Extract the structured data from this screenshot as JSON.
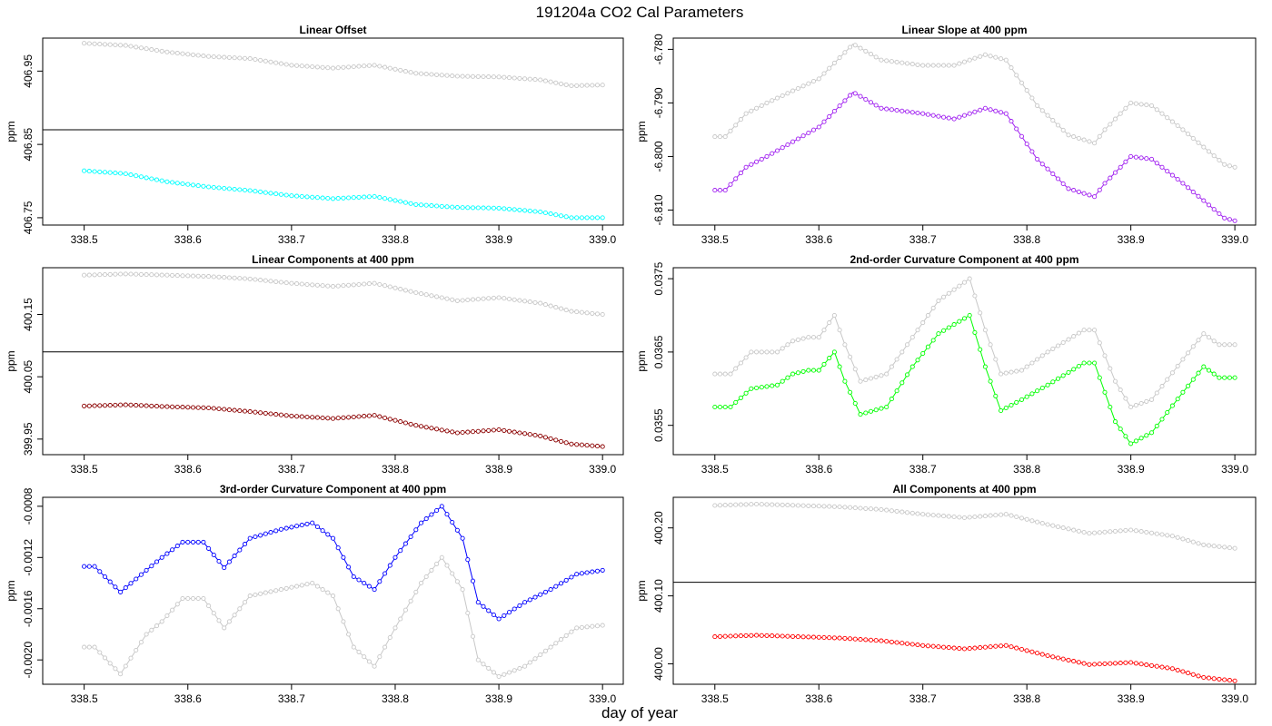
{
  "figure": {
    "title": "191204a   CO2 Cal Parameters",
    "xlabel": "day of year"
  },
  "colors": {
    "gray": "#c8c8c8",
    "cyan": "#00ffff",
    "purple": "#a020f0",
    "maroon": "#8b0000",
    "green": "#00ff00",
    "blue": "#0000ff",
    "red": "#ff0000",
    "ref_line": "#000000"
  },
  "chart_data": [
    {
      "type": "scatter",
      "title": "Linear Offset",
      "ylabel": "ppm",
      "xlim": [
        338.46,
        339.02
      ],
      "ylim": [
        406.74,
        406.995
      ],
      "xticks": [
        338.5,
        338.6,
        338.7,
        338.8,
        338.9,
        339.0
      ],
      "xtick_labels": [
        "338.5",
        "338.6",
        "338.7",
        "338.8",
        "338.9",
        "339.0"
      ],
      "yticks": [
        406.75,
        406.85,
        406.95
      ],
      "ytick_labels": [
        "406.75",
        "406.85",
        "406.95"
      ],
      "hline": 406.87,
      "series": [
        {
          "color": "gray",
          "x": [
            338.5,
            338.54,
            338.58,
            338.62,
            338.66,
            338.7,
            338.74,
            338.78,
            338.82,
            338.86,
            338.9,
            338.94,
            338.97,
            339.0
          ],
          "y": [
            406.988,
            406.985,
            406.976,
            406.97,
            406.967,
            406.958,
            406.954,
            406.958,
            406.947,
            406.943,
            406.942,
            406.938,
            406.93,
            406.931
          ]
        },
        {
          "color": "cyan",
          "x": [
            338.5,
            338.54,
            338.58,
            338.62,
            338.66,
            338.7,
            338.74,
            338.78,
            338.82,
            338.86,
            338.9,
            338.94,
            338.97,
            339.0
          ],
          "y": [
            406.814,
            406.81,
            406.799,
            406.792,
            406.787,
            406.78,
            406.776,
            406.779,
            406.768,
            406.764,
            406.763,
            406.758,
            406.75,
            406.75
          ]
        }
      ]
    },
    {
      "type": "scatter",
      "title": "Linear Slope at 400 ppm",
      "ylabel": "ppm",
      "xlim": [
        338.46,
        339.02
      ],
      "ylim": [
        -6.8128,
        -6.7779
      ],
      "xticks": [
        338.5,
        338.6,
        338.7,
        338.8,
        338.9,
        339.0
      ],
      "xtick_labels": [
        "338.5",
        "338.6",
        "338.7",
        "338.8",
        "338.9",
        "339.0"
      ],
      "yticks": [
        -6.81,
        -6.8,
        -6.79,
        -6.78
      ],
      "ytick_labels": [
        "-6.810",
        "-6.800",
        "-6.790",
        "-6.780"
      ],
      "series": [
        {
          "color": "gray",
          "x": [
            338.5,
            338.51,
            338.53,
            338.55,
            338.6,
            338.633,
            338.66,
            338.7,
            338.73,
            338.76,
            338.78,
            338.81,
            338.84,
            338.865,
            338.875,
            338.9,
            338.92,
            338.95,
            338.99,
            339.0
          ],
          "y": [
            -6.7963,
            -6.7963,
            -6.792,
            -6.79,
            -6.7855,
            -6.779,
            -6.782,
            -6.783,
            -6.783,
            -6.781,
            -6.782,
            -6.7905,
            -6.796,
            -6.7975,
            -6.795,
            -6.79,
            -6.7905,
            -6.795,
            -6.8015,
            -6.802
          ]
        },
        {
          "color": "purple",
          "x": [
            338.5,
            338.51,
            338.53,
            338.55,
            338.6,
            338.633,
            338.66,
            338.7,
            338.73,
            338.76,
            338.78,
            338.81,
            338.84,
            338.865,
            338.875,
            338.9,
            338.92,
            338.95,
            338.99,
            339.0
          ],
          "y": [
            -6.8063,
            -6.8063,
            -6.802,
            -6.8,
            -6.7945,
            -6.788,
            -6.791,
            -6.792,
            -6.793,
            -6.791,
            -6.792,
            -6.8005,
            -6.806,
            -6.8075,
            -6.805,
            -6.8,
            -6.8005,
            -6.805,
            -6.8115,
            -6.812
          ]
        }
      ]
    },
    {
      "type": "scatter",
      "title": "Linear Components at 400 ppm",
      "ylabel": "ppm",
      "xlim": [
        338.46,
        339.02
      ],
      "ylim": [
        399.925,
        400.225
      ],
      "xticks": [
        338.5,
        338.6,
        338.7,
        338.8,
        338.9,
        339.0
      ],
      "xtick_labels": [
        "338.5",
        "338.6",
        "338.7",
        "338.8",
        "338.9",
        "339.0"
      ],
      "yticks": [
        399.95,
        400.05,
        400.15
      ],
      "ytick_labels": [
        "399.95",
        "400.05",
        "400.15"
      ],
      "hline": 400.09,
      "series": [
        {
          "color": "gray",
          "x": [
            338.5,
            338.54,
            338.58,
            338.62,
            338.66,
            338.7,
            338.74,
            338.78,
            338.82,
            338.86,
            338.9,
            338.94,
            338.97,
            339.0
          ],
          "y": [
            400.213,
            400.215,
            400.213,
            400.211,
            400.207,
            400.2,
            400.195,
            400.2,
            400.185,
            400.172,
            400.177,
            400.168,
            400.155,
            400.15
          ]
        },
        {
          "color": "maroon",
          "x": [
            338.5,
            338.54,
            338.58,
            338.62,
            338.66,
            338.7,
            338.74,
            338.78,
            338.82,
            338.86,
            338.9,
            338.94,
            338.97,
            339.0
          ],
          "y": [
            400.003,
            400.005,
            400.002,
            400.0,
            399.994,
            399.987,
            399.983,
            399.988,
            399.972,
            399.96,
            399.965,
            399.955,
            399.942,
            399.938
          ]
        }
      ]
    },
    {
      "type": "scatter",
      "title": "2nd-order Curvature Component at 400 ppm",
      "ylabel": "ppm",
      "xlim": [
        338.46,
        339.02
      ],
      "ylim": [
        0.0351,
        0.03765
      ],
      "xticks": [
        338.5,
        338.6,
        338.7,
        338.8,
        338.9,
        339.0
      ],
      "xtick_labels": [
        "338.5",
        "338.6",
        "338.7",
        "338.8",
        "338.9",
        "339.0"
      ],
      "yticks": [
        0.0355,
        0.0365,
        0.0375
      ],
      "ytick_labels": [
        "0.0355",
        "0.0365",
        "0.0375"
      ],
      "series": [
        {
          "color": "gray",
          "x": [
            338.5,
            338.515,
            338.535,
            338.56,
            338.575,
            338.59,
            338.6,
            338.615,
            338.625,
            338.64,
            338.665,
            338.69,
            338.715,
            338.745,
            338.76,
            338.775,
            338.795,
            338.82,
            338.855,
            338.865,
            338.885,
            338.9,
            338.92,
            338.95,
            338.97,
            338.985,
            339.0
          ],
          "y": [
            0.0362,
            0.0362,
            0.0365,
            0.0365,
            0.03665,
            0.0367,
            0.0367,
            0.037,
            0.0366,
            0.0361,
            0.0362,
            0.0367,
            0.0372,
            0.0375,
            0.0368,
            0.0362,
            0.03625,
            0.0365,
            0.0368,
            0.0368,
            0.0361,
            0.03575,
            0.03585,
            0.0364,
            0.03675,
            0.0366,
            0.0366
          ]
        },
        {
          "color": "green",
          "x": [
            338.5,
            338.515,
            338.535,
            338.56,
            338.575,
            338.59,
            338.6,
            338.615,
            338.625,
            338.64,
            338.665,
            338.69,
            338.715,
            338.745,
            338.76,
            338.775,
            338.795,
            338.82,
            338.855,
            338.865,
            338.885,
            338.9,
            338.92,
            338.95,
            338.97,
            338.985,
            339.0
          ],
          "y": [
            0.03575,
            0.03575,
            0.036,
            0.03605,
            0.0362,
            0.03625,
            0.03625,
            0.0365,
            0.0361,
            0.03565,
            0.03575,
            0.0363,
            0.03675,
            0.037,
            0.0363,
            0.0357,
            0.03585,
            0.03605,
            0.03635,
            0.03635,
            0.03555,
            0.03525,
            0.0354,
            0.03595,
            0.0363,
            0.03615,
            0.03615
          ]
        }
      ]
    },
    {
      "type": "scatter",
      "title": "3rd-order Curvature Component at 400 ppm",
      "ylabel": "ppm",
      "xlim": [
        338.46,
        339.02
      ],
      "ylim": [
        -0.00219,
        -0.00073
      ],
      "xticks": [
        338.5,
        338.6,
        338.7,
        338.8,
        338.9,
        339.0
      ],
      "xtick_labels": [
        "338.5",
        "338.6",
        "338.7",
        "338.8",
        "338.9",
        "339.0"
      ],
      "yticks": [
        -0.002,
        -0.0016,
        -0.0012,
        -0.0008
      ],
      "ytick_labels": [
        "-0.0020",
        "-0.0016",
        "-0.0012",
        "-0.0008"
      ],
      "series": [
        {
          "color": "gray",
          "x": [
            338.5,
            338.51,
            338.535,
            338.56,
            338.575,
            338.595,
            338.615,
            338.635,
            338.66,
            338.69,
            338.72,
            338.74,
            338.76,
            338.78,
            338.8,
            338.825,
            338.845,
            338.865,
            338.88,
            338.9,
            338.925,
            338.95,
            338.975,
            339.0
          ],
          "y": [
            -0.0019,
            -0.0019,
            -0.00211,
            -0.0018,
            -0.0017,
            -0.00152,
            -0.00152,
            -0.00175,
            -0.0015,
            -0.00145,
            -0.0014,
            -0.0015,
            -0.0019,
            -0.00205,
            -0.00175,
            -0.0014,
            -0.0012,
            -0.00145,
            -0.002,
            -0.00213,
            -0.00205,
            -0.0019,
            -0.00175,
            -0.00173
          ]
        },
        {
          "color": "blue",
          "x": [
            338.5,
            338.51,
            338.535,
            338.56,
            338.575,
            338.595,
            338.615,
            338.635,
            338.66,
            338.69,
            338.72,
            338.74,
            338.76,
            338.78,
            338.8,
            338.825,
            338.845,
            338.865,
            338.88,
            338.9,
            338.925,
            338.95,
            338.975,
            339.0
          ],
          "y": [
            -0.00127,
            -0.00127,
            -0.00147,
            -0.0013,
            -0.0012,
            -0.00108,
            -0.00108,
            -0.00128,
            -0.00105,
            -0.00098,
            -0.00093,
            -0.00105,
            -0.00135,
            -0.00145,
            -0.0012,
            -0.00093,
            -0.0008,
            -0.00105,
            -0.00155,
            -0.00168,
            -0.00155,
            -0.00145,
            -0.00133,
            -0.0013
          ]
        }
      ]
    },
    {
      "type": "scatter",
      "title": "All Components at 400 ppm",
      "ylabel": "ppm",
      "xlim": [
        338.46,
        339.02
      ],
      "ylim": [
        399.97,
        400.245
      ],
      "xticks": [
        338.5,
        338.6,
        338.7,
        338.8,
        338.9,
        339.0
      ],
      "xtick_labels": [
        "338.5",
        "338.6",
        "338.7",
        "338.8",
        "338.9",
        "339.0"
      ],
      "yticks": [
        400.0,
        400.1,
        400.2
      ],
      "ytick_labels": [
        "400.00",
        "400.10",
        "400.20"
      ],
      "hline": 400.12,
      "series": [
        {
          "color": "gray",
          "x": [
            338.5,
            338.54,
            338.58,
            338.62,
            338.66,
            338.7,
            338.74,
            338.78,
            338.82,
            338.86,
            338.9,
            338.94,
            338.97,
            339.0
          ],
          "y": [
            400.233,
            400.235,
            400.233,
            400.231,
            400.227,
            400.22,
            400.215,
            400.22,
            400.205,
            400.192,
            400.197,
            400.188,
            400.175,
            400.17
          ]
        },
        {
          "color": "red",
          "x": [
            338.5,
            338.54,
            338.58,
            338.62,
            338.66,
            338.7,
            338.74,
            338.78,
            338.82,
            338.86,
            338.9,
            338.94,
            338.97,
            339.0
          ],
          "y": [
            400.04,
            400.042,
            400.04,
            400.038,
            400.034,
            400.027,
            400.022,
            400.027,
            400.012,
            399.999,
            400.002,
            399.993,
            399.98,
            399.975
          ]
        }
      ]
    }
  ]
}
